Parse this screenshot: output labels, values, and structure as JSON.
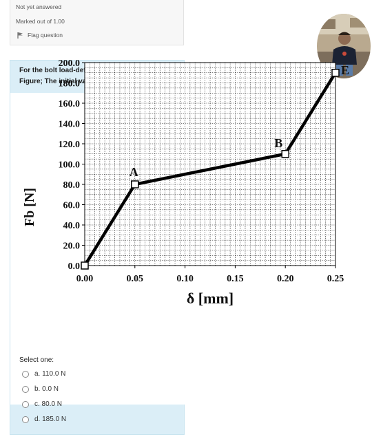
{
  "info": {
    "status": "Not yet answered",
    "marks": "Marked out of 1.00",
    "flag_label": "Flag question"
  },
  "question": {
    "text": "For the bolt load-deflection curve shown in Figure; The initial value of the preload"
  },
  "chart_data": {
    "type": "line",
    "title": "",
    "xlabel": "δ [mm]",
    "ylabel": "Fb [N]",
    "xlim": [
      0,
      0.25
    ],
    "ylim": [
      0,
      200
    ],
    "grid": true,
    "x_ticks": [
      "0.00",
      "0.05",
      "0.10",
      "0.15",
      "0.20",
      "0.25"
    ],
    "y_ticks": [
      "0.0",
      "20.0",
      "40.0",
      "60.0",
      "80.0",
      "100.0",
      "120.0",
      "140.0",
      "160.0",
      "180.0",
      "200.0"
    ],
    "series": [
      {
        "x": [
          0.0,
          0.05,
          0.2,
          0.25
        ],
        "y": [
          0.0,
          80.0,
          110.0,
          190.0
        ],
        "point_labels": [
          "",
          "A",
          "B",
          "E"
        ]
      }
    ],
    "line_color": "#000000"
  },
  "answer": {
    "prompt": "Select one:",
    "options": [
      {
        "label": "a. 110.0 N"
      },
      {
        "label": "b. 0.0 N"
      },
      {
        "label": "c. 80.0 N"
      },
      {
        "label": "d. 185.0 N"
      }
    ]
  }
}
